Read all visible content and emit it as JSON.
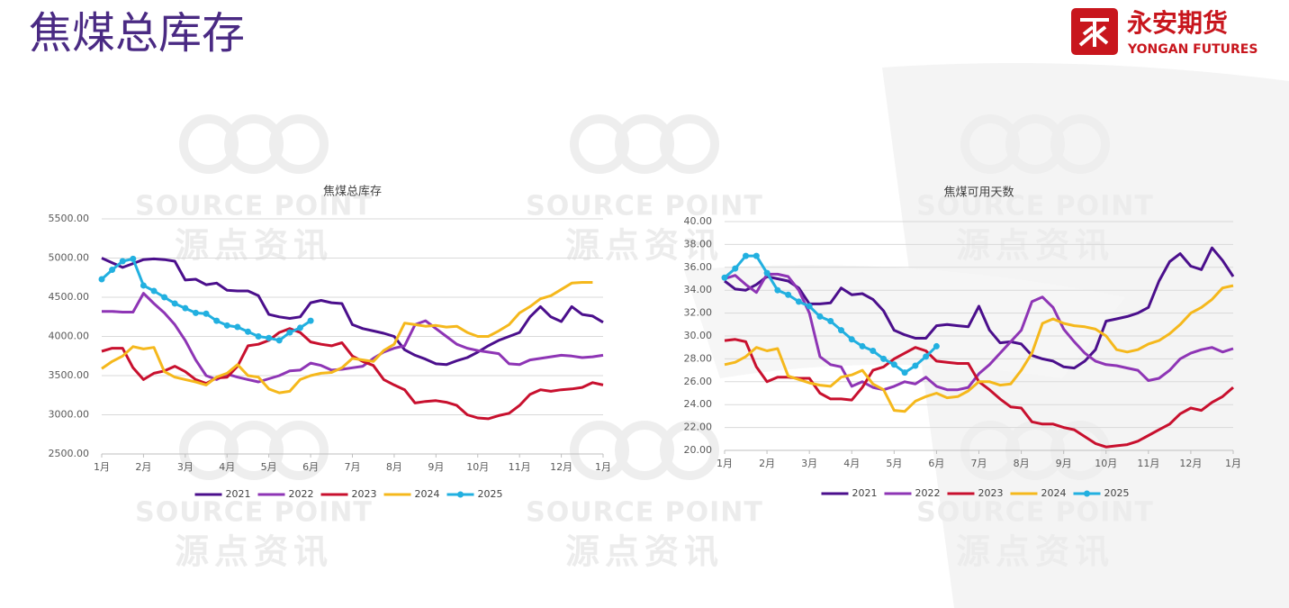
{
  "header": {
    "title": "焦煤总库存",
    "logo_cn": "永安期货",
    "logo_en": "YONGAN FUTURES"
  },
  "watermark": {
    "en": "SOURCE POINT",
    "cn": "源点资讯"
  },
  "chart_data": [
    {
      "type": "line",
      "title": "焦煤总库存",
      "x": [
        0,
        0.25,
        0.5,
        0.75,
        1,
        1.25,
        1.5,
        1.75,
        2,
        2.25,
        2.5,
        2.75,
        3,
        3.25,
        3.5,
        3.75,
        4,
        4.25,
        4.5,
        4.75,
        5,
        5.25,
        5.5,
        5.75,
        6,
        6.25,
        6.5,
        6.75,
        7,
        7.25,
        7.5,
        7.75,
        8,
        8.25,
        8.5,
        8.75,
        9,
        9.25,
        9.5,
        9.75,
        10,
        10.25,
        10.5,
        10.75,
        11,
        11.25,
        11.5,
        11.75,
        12
      ],
      "xlim": [
        0,
        12
      ],
      "xticks": [
        {
          "value": 0,
          "label": "1月"
        },
        {
          "value": 1,
          "label": "2月"
        },
        {
          "value": 2,
          "label": "3月"
        },
        {
          "value": 3,
          "label": "4月"
        },
        {
          "value": 4,
          "label": "5月"
        },
        {
          "value": 5,
          "label": "6月"
        },
        {
          "value": 6,
          "label": "7月"
        },
        {
          "value": 7,
          "label": "8月"
        },
        {
          "value": 8,
          "label": "9月"
        },
        {
          "value": 9,
          "label": "10月"
        },
        {
          "value": 10,
          "label": "11月"
        },
        {
          "value": 11,
          "label": "12月"
        },
        {
          "value": 12,
          "label": "1月"
        }
      ],
      "ylim": [
        2500,
        5500
      ],
      "yticks": [
        {
          "value": 2500,
          "label": "2500.00"
        },
        {
          "value": 3000,
          "label": "3000.00"
        },
        {
          "value": 3500,
          "label": "3500.00"
        },
        {
          "value": 4000,
          "label": "4000.00"
        },
        {
          "value": 4500,
          "label": "4500.00"
        },
        {
          "value": 5000,
          "label": "5000.00"
        },
        {
          "value": 5500,
          "label": "5500.00"
        }
      ],
      "grid": true,
      "series": [
        {
          "name": "2021",
          "color": "#4b0f8c",
          "values": [
            5000,
            4940,
            4880,
            4930,
            4980,
            4990,
            4980,
            4960,
            4720,
            4730,
            4660,
            4680,
            4590,
            4580,
            4580,
            4520,
            4280,
            4250,
            4230,
            4250,
            4430,
            4460,
            4430,
            4420,
            4150,
            4100,
            4070,
            4040,
            4000,
            3830,
            3760,
            3710,
            3650,
            3640,
            3690,
            3730,
            3800,
            3880,
            3950,
            4000,
            4050,
            4250,
            4380,
            4250,
            4190,
            4380,
            4280,
            4260,
            4180
          ]
        },
        {
          "name": "2022",
          "color": "#8e35b5",
          "values": [
            4320,
            4320,
            4310,
            4310,
            4550,
            4420,
            4300,
            4150,
            3950,
            3700,
            3500,
            3450,
            3520,
            3480,
            3450,
            3420,
            3460,
            3500,
            3560,
            3570,
            3660,
            3630,
            3570,
            3580,
            3600,
            3620,
            3720,
            3800,
            3850,
            3880,
            4150,
            4200,
            4100,
            4000,
            3900,
            3850,
            3820,
            3800,
            3780,
            3650,
            3640,
            3700,
            3720,
            3740,
            3760,
            3750,
            3730,
            3740,
            3760
          ]
        },
        {
          "name": "2023",
          "color": "#c8102e",
          "values": [
            3810,
            3850,
            3850,
            3600,
            3450,
            3530,
            3560,
            3620,
            3550,
            3450,
            3400,
            3470,
            3480,
            3620,
            3880,
            3900,
            3950,
            4050,
            4100,
            4050,
            3930,
            3900,
            3880,
            3920,
            3750,
            3680,
            3630,
            3450,
            3380,
            3320,
            3150,
            3170,
            3180,
            3160,
            3120,
            3000,
            2960,
            2950,
            2990,
            3020,
            3120,
            3260,
            3320,
            3300,
            3320,
            3330,
            3350,
            3410,
            3380
          ]
        },
        {
          "name": "2024",
          "color": "#f5b81c",
          "values": [
            3590,
            3680,
            3750,
            3870,
            3840,
            3860,
            3550,
            3480,
            3450,
            3420,
            3380,
            3480,
            3530,
            3640,
            3500,
            3480,
            3330,
            3280,
            3300,
            3450,
            3500,
            3530,
            3540,
            3600,
            3720,
            3700,
            3680,
            3820,
            3900,
            4170,
            4150,
            4130,
            4140,
            4120,
            4130,
            4050,
            4000,
            4000,
            4070,
            4150,
            4300,
            4380,
            4480,
            4520,
            4600,
            4680,
            4690,
            4690,
            null
          ]
        },
        {
          "name": "2025",
          "color": "#22b0e0",
          "markers": true,
          "values": [
            4730,
            4850,
            4960,
            4990,
            4650,
            4580,
            4500,
            4420,
            4360,
            4300,
            4290,
            4200,
            4140,
            4120,
            4060,
            4000,
            3980,
            3950,
            4050,
            4110,
            4200,
            null,
            null,
            null,
            null,
            null,
            null,
            null,
            null,
            null,
            null,
            null,
            null,
            null,
            null,
            null,
            null,
            null,
            null,
            null,
            null,
            null,
            null,
            null,
            null,
            null,
            null,
            null,
            null
          ]
        }
      ]
    },
    {
      "type": "line",
      "title": "焦煤可用天数",
      "x": [
        0,
        0.25,
        0.5,
        0.75,
        1,
        1.25,
        1.5,
        1.75,
        2,
        2.25,
        2.5,
        2.75,
        3,
        3.25,
        3.5,
        3.75,
        4,
        4.25,
        4.5,
        4.75,
        5,
        5.25,
        5.5,
        5.75,
        6,
        6.25,
        6.5,
        6.75,
        7,
        7.25,
        7.5,
        7.75,
        8,
        8.25,
        8.5,
        8.75,
        9,
        9.25,
        9.5,
        9.75,
        10,
        10.25,
        10.5,
        10.75,
        11,
        11.25,
        11.5,
        11.75,
        12
      ],
      "xlim": [
        0,
        12
      ],
      "xticks": [
        {
          "value": 0,
          "label": "1月"
        },
        {
          "value": 1,
          "label": "2月"
        },
        {
          "value": 2,
          "label": "3月"
        },
        {
          "value": 3,
          "label": "4月"
        },
        {
          "value": 4,
          "label": "5月"
        },
        {
          "value": 5,
          "label": "6月"
        },
        {
          "value": 6,
          "label": "7月"
        },
        {
          "value": 7,
          "label": "8月"
        },
        {
          "value": 8,
          "label": "9月"
        },
        {
          "value": 9,
          "label": "10月"
        },
        {
          "value": 10,
          "label": "11月"
        },
        {
          "value": 11,
          "label": "12月"
        },
        {
          "value": 12,
          "label": "1月"
        }
      ],
      "ylim": [
        20,
        40
      ],
      "yticks": [
        {
          "value": 20,
          "label": "20.00"
        },
        {
          "value": 22,
          "label": "22.00"
        },
        {
          "value": 24,
          "label": "24.00"
        },
        {
          "value": 26,
          "label": "26.00"
        },
        {
          "value": 28,
          "label": "28.00"
        },
        {
          "value": 30,
          "label": "30.00"
        },
        {
          "value": 32,
          "label": "32.00"
        },
        {
          "value": 34,
          "label": "34.00"
        },
        {
          "value": 36,
          "label": "36.00"
        },
        {
          "value": 38,
          "label": "38.00"
        },
        {
          "value": 40,
          "label": "40.00"
        }
      ],
      "grid": true,
      "series": [
        {
          "name": "2021",
          "color": "#4b0f8c",
          "values": [
            34.8,
            34.1,
            34.0,
            34.5,
            35.2,
            35.0,
            34.8,
            34.2,
            32.8,
            32.8,
            32.9,
            34.2,
            33.6,
            33.7,
            33.2,
            32.2,
            30.5,
            30.1,
            29.8,
            29.8,
            30.9,
            31.0,
            30.9,
            30.8,
            32.6,
            30.5,
            29.4,
            29.5,
            29.3,
            28.3,
            28.0,
            27.8,
            27.3,
            27.2,
            27.8,
            28.8,
            31.3,
            31.5,
            31.7,
            32.0,
            32.5,
            34.8,
            36.5,
            37.2,
            36.1,
            35.8,
            37.7,
            36.6,
            35.2
          ]
        },
        {
          "name": "2022",
          "color": "#8e35b5",
          "values": [
            35.0,
            35.3,
            34.5,
            33.8,
            35.4,
            35.4,
            35.2,
            34.0,
            32.0,
            28.2,
            27.5,
            27.3,
            25.6,
            26.0,
            25.5,
            25.3,
            25.6,
            26.0,
            25.8,
            26.4,
            25.6,
            25.3,
            25.3,
            25.5,
            26.7,
            27.5,
            28.5,
            29.5,
            30.5,
            33.0,
            33.4,
            32.5,
            30.6,
            29.5,
            28.5,
            27.8,
            27.5,
            27.4,
            27.2,
            27.0,
            26.1,
            26.3,
            27.0,
            28.0,
            28.5,
            28.8,
            29.0,
            28.6,
            28.9
          ]
        },
        {
          "name": "2023",
          "color": "#c8102e",
          "values": [
            29.6,
            29.7,
            29.5,
            27.3,
            26.0,
            26.4,
            26.4,
            26.3,
            26.3,
            25.0,
            24.5,
            24.5,
            24.4,
            25.5,
            27.0,
            27.3,
            28.0,
            28.5,
            29.0,
            28.7,
            27.8,
            27.7,
            27.6,
            27.6,
            26.0,
            25.3,
            24.5,
            23.8,
            23.7,
            22.5,
            22.3,
            22.3,
            22.0,
            21.8,
            21.2,
            20.6,
            20.3,
            20.4,
            20.5,
            20.8,
            21.3,
            21.8,
            22.3,
            23.2,
            23.7,
            23.5,
            24.2,
            24.7,
            25.5
          ]
        },
        {
          "name": "2024",
          "color": "#f5b81c",
          "values": [
            27.5,
            27.7,
            28.2,
            29.0,
            28.7,
            28.9,
            26.5,
            26.2,
            25.9,
            25.7,
            25.6,
            26.4,
            26.6,
            27.0,
            25.8,
            25.3,
            23.5,
            23.4,
            24.3,
            24.7,
            25.0,
            24.6,
            24.7,
            25.2,
            26.0,
            26.0,
            25.7,
            25.8,
            27.0,
            28.5,
            31.1,
            31.5,
            31.1,
            30.9,
            30.8,
            30.6,
            30.0,
            28.8,
            28.6,
            28.8,
            29.3,
            29.6,
            30.2,
            31.0,
            32.0,
            32.5,
            33.2,
            34.2,
            34.4
          ]
        },
        {
          "name": "2025",
          "color": "#22b0e0",
          "markers": true,
          "values": [
            35.1,
            35.9,
            37.0,
            37.0,
            35.5,
            34.0,
            33.6,
            33.0,
            32.6,
            31.7,
            31.3,
            30.5,
            29.7,
            29.1,
            28.7,
            28.0,
            27.5,
            26.8,
            27.4,
            28.2,
            29.1,
            null,
            null,
            null,
            null,
            null,
            null,
            null,
            null,
            null,
            null,
            null,
            null,
            null,
            null,
            null,
            null,
            null,
            null,
            null,
            null,
            null,
            null,
            null,
            null,
            null,
            null,
            null,
            null
          ]
        }
      ]
    }
  ]
}
